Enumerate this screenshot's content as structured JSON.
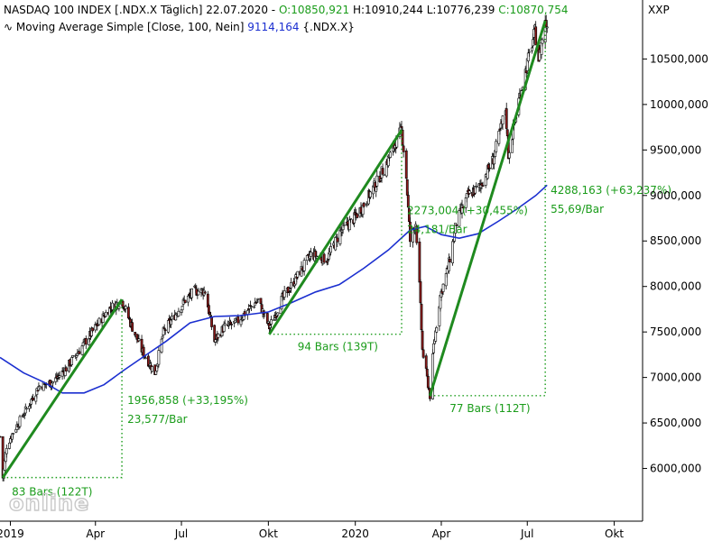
{
  "header": {
    "title": "NASDAQ 100 INDEX [.NDX.X",
    "period": "Täglich] 22.07.2020 -",
    "open": "O:10850,921",
    "high": "H:10910,244",
    "low": "L:10776,239",
    "close": "C:10870,754",
    "symbol": "XXP",
    "ma_label": "Moving Average Simple [Close, 100, Nein]",
    "ma_value": "9114,164",
    "ma_symbol": "{.NDX.X}",
    "ma_icon": "wave-icon"
  },
  "watermark": "online",
  "colors": {
    "up": "#ffffff",
    "down": "#8b1a1a",
    "wick": "#000000",
    "trend": "#1f8a1f",
    "ma": "#1b2fd0",
    "annotation": "#1a9c1a",
    "axis": "#000000"
  },
  "chart_data": {
    "type": "candlestick",
    "title": "NASDAQ 100 INDEX [.NDX.X Täglich] 22.07.2020",
    "ylim": [
      5500,
      10950
    ],
    "y_ticks": [
      6000,
      6500,
      7000,
      7500,
      8000,
      8500,
      9000,
      9500,
      10000,
      10500
    ],
    "y_tick_labels": [
      "6000,000",
      "6500,000",
      "7000,000",
      "7500,000",
      "8000,000",
      "8500,000",
      "9000,000",
      "9500,000",
      "10000,000",
      "10500,000"
    ],
    "x_range": [
      "2018-12-21",
      "2020-10-31"
    ],
    "x_ticks": [
      {
        "date": "2019-01-01",
        "label": "2019"
      },
      {
        "date": "2019-04-01",
        "label": "Apr"
      },
      {
        "date": "2019-07-01",
        "label": "Jul"
      },
      {
        "date": "2019-10-01",
        "label": "Okt"
      },
      {
        "date": "2020-01-01",
        "label": "2020"
      },
      {
        "date": "2020-04-01",
        "label": "Apr"
      },
      {
        "date": "2020-07-01",
        "label": "Jul"
      },
      {
        "date": "2020-10-01",
        "label": "Okt"
      }
    ],
    "price_path": [
      [
        "2018-12-21",
        6350
      ],
      [
        "2018-12-24",
        5900
      ],
      [
        "2018-12-28",
        6250
      ],
      [
        "2019-01-04",
        6400
      ],
      [
        "2019-01-15",
        6600
      ],
      [
        "2019-01-31",
        6900
      ],
      [
        "2019-02-15",
        6950
      ],
      [
        "2019-03-01",
        7100
      ],
      [
        "2019-03-15",
        7300
      ],
      [
        "2019-04-01",
        7550
      ],
      [
        "2019-04-15",
        7750
      ],
      [
        "2019-04-29",
        7850
      ],
      [
        "2019-05-08",
        7600
      ],
      [
        "2019-05-20",
        7300
      ],
      [
        "2019-06-03",
        7050
      ],
      [
        "2019-06-12",
        7500
      ],
      [
        "2019-06-25",
        7700
      ],
      [
        "2019-07-05",
        7850
      ],
      [
        "2019-07-15",
        7950
      ],
      [
        "2019-07-26",
        7950
      ],
      [
        "2019-08-05",
        7400
      ],
      [
        "2019-08-15",
        7550
      ],
      [
        "2019-08-28",
        7600
      ],
      [
        "2019-09-10",
        7750
      ],
      [
        "2019-09-20",
        7850
      ],
      [
        "2019-10-02",
        7550
      ],
      [
        "2019-10-15",
        7850
      ],
      [
        "2019-10-31",
        8100
      ],
      [
        "2019-11-15",
        8350
      ],
      [
        "2019-12-02",
        8300
      ],
      [
        "2019-12-16",
        8600
      ],
      [
        "2019-12-31",
        8750
      ],
      [
        "2020-01-10",
        8900
      ],
      [
        "2020-01-24",
        9150
      ],
      [
        "2020-02-05",
        9400
      ],
      [
        "2020-02-19",
        9720
      ],
      [
        "2020-02-24",
        9200
      ],
      [
        "2020-02-28",
        8500
      ],
      [
        "2020-03-05",
        8700
      ],
      [
        "2020-03-09",
        8000
      ],
      [
        "2020-03-12",
        7300
      ],
      [
        "2020-03-16",
        7050
      ],
      [
        "2020-03-20",
        6800
      ],
      [
        "2020-03-24",
        7350
      ],
      [
        "2020-03-31",
        7900
      ],
      [
        "2020-04-08",
        8200
      ],
      [
        "2020-04-17",
        8700
      ],
      [
        "2020-04-29",
        9000
      ],
      [
        "2020-05-12",
        9100
      ],
      [
        "2020-05-26",
        9400
      ],
      [
        "2020-06-08",
        9950
      ],
      [
        "2020-06-11",
        9450
      ],
      [
        "2020-06-22",
        10050
      ],
      [
        "2020-07-02",
        10500
      ],
      [
        "2020-07-09",
        10800
      ],
      [
        "2020-07-13",
        10500
      ],
      [
        "2020-07-20",
        10900
      ],
      [
        "2020-07-22",
        10870
      ]
    ],
    "moving_average": {
      "name": "Moving Average Simple [Close, 100, Nein]",
      "points": [
        [
          "2018-12-21",
          7220
        ],
        [
          "2019-01-15",
          7050
        ],
        [
          "2019-02-05",
          6950
        ],
        [
          "2019-02-25",
          6830
        ],
        [
          "2019-03-20",
          6830
        ],
        [
          "2019-04-10",
          6920
        ],
        [
          "2019-05-01",
          7080
        ],
        [
          "2019-05-25",
          7250
        ],
        [
          "2019-06-15",
          7400
        ],
        [
          "2019-07-10",
          7600
        ],
        [
          "2019-08-05",
          7670
        ],
        [
          "2019-09-01",
          7680
        ],
        [
          "2019-10-01",
          7720
        ],
        [
          "2019-10-25",
          7820
        ],
        [
          "2019-11-20",
          7940
        ],
        [
          "2019-12-15",
          8020
        ],
        [
          "2020-01-10",
          8200
        ],
        [
          "2020-02-05",
          8400
        ],
        [
          "2020-02-28",
          8620
        ],
        [
          "2020-03-15",
          8660
        ],
        [
          "2020-04-01",
          8570
        ],
        [
          "2020-04-20",
          8530
        ],
        [
          "2020-05-10",
          8580
        ],
        [
          "2020-06-01",
          8720
        ],
        [
          "2020-06-20",
          8850
        ],
        [
          "2020-07-10",
          9000
        ],
        [
          "2020-07-22",
          9114
        ]
      ]
    },
    "trend_lines": [
      {
        "from": [
          "2018-12-24",
          5900
        ],
        "to": [
          "2019-04-29",
          7857
        ]
      },
      {
        "from": [
          "2019-10-02",
          7475
        ],
        "to": [
          "2020-02-19",
          9720
        ]
      },
      {
        "from": [
          "2020-03-20",
          6800
        ],
        "to": [
          "2020-07-20",
          10920
        ]
      }
    ],
    "measures": [
      {
        "bars_label": "83 Bars (122T)",
        "change_label": "1956,858 (+33,195%)",
        "rate_label": "23,577/Bar",
        "low": [
          "2018-12-24",
          5900
        ],
        "high": [
          "2019-04-29",
          7857
        ]
      },
      {
        "bars_label": "94 Bars (139T)",
        "change_label": "2273,004 (+30,455%)",
        "rate_label": "24,181/Bar",
        "low": [
          "2019-10-02",
          7475
        ],
        "high": [
          "2020-02-19",
          9720
        ]
      },
      {
        "bars_label": "77 Bars (112T)",
        "change_label": "4288,163 (+63,237%)",
        "rate_label": "55,69/Bar",
        "low": [
          "2020-03-20",
          6800
        ],
        "high": [
          "2020-07-20",
          10920
        ]
      }
    ]
  }
}
